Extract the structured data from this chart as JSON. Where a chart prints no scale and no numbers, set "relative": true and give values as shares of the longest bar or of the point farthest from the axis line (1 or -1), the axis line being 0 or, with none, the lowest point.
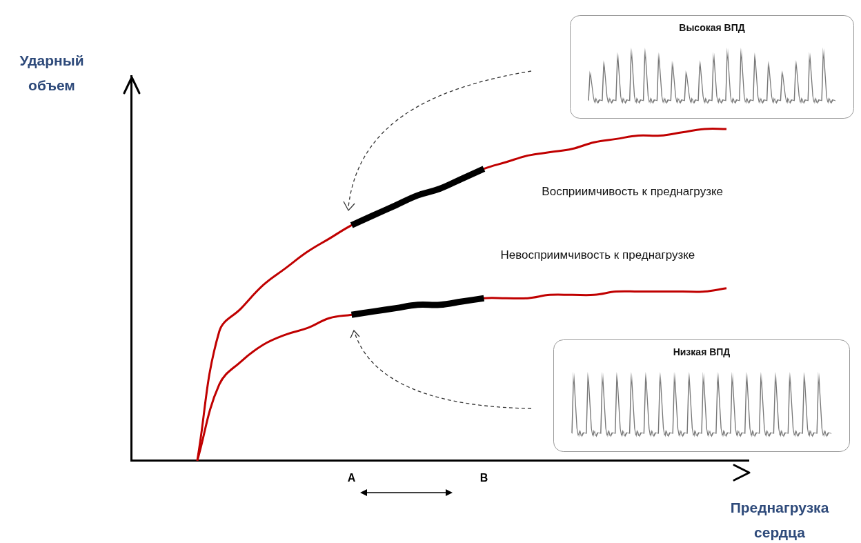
{
  "chart_data": {
    "type": "line",
    "relative": true,
    "xlabel": "Преднагрузка сердца",
    "ylabel": "Ударный объем",
    "categories": [
      null,
      null,
      null,
      null,
      null,
      null,
      null,
      null,
      null,
      null,
      "A",
      null,
      null,
      null,
      null,
      null,
      "B",
      null,
      null,
      null,
      null,
      null,
      null,
      null,
      null,
      null,
      null,
      null,
      null
    ],
    "series": [
      {
        "name": "Восприимчивость к преднагрузке",
        "color": "#c00000",
        "values": [
          null,
          null,
          null,
          0,
          0.39,
          0.46,
          0.53,
          0.58,
          0.63,
          0.67,
          0.71,
          0.74,
          0.77,
          0.8,
          0.82,
          0.85,
          0.88,
          0.9,
          0.92,
          0.93,
          0.94,
          0.96,
          0.97,
          0.98,
          0.98,
          0.99,
          1.0,
          1.0,
          null
        ]
      },
      {
        "name": "Невосприимчивость к преднагрузке",
        "color": "#c00000",
        "values": [
          null,
          null,
          null,
          0,
          0.23,
          0.3,
          0.35,
          0.38,
          0.4,
          0.43,
          0.44,
          0.45,
          0.46,
          0.47,
          0.47,
          0.48,
          0.49,
          0.49,
          0.49,
          0.5,
          0.5,
          0.5,
          0.51,
          0.51,
          0.51,
          0.51,
          0.51,
          0.52,
          null
        ]
      },
      {
        "color": "#000000",
        "values": [
          null,
          null,
          null,
          null,
          null,
          null,
          null,
          null,
          null,
          null,
          0.71,
          0.74,
          0.77,
          0.8,
          0.82,
          0.85,
          0.88,
          null,
          null,
          null,
          null,
          null,
          null,
          null,
          null,
          null,
          null,
          null,
          null
        ]
      },
      {
        "color": "#000000",
        "values": [
          null,
          null,
          null,
          null,
          null,
          null,
          null,
          null,
          null,
          null,
          0.44,
          0.45,
          0.46,
          0.47,
          0.47,
          0.48,
          0.49,
          null,
          null,
          null,
          null,
          null,
          null,
          null,
          null,
          null,
          null,
          null,
          null
        ]
      }
    ],
    "annotations": [
      "Высокая ВПД",
      "Низкая ВПД"
    ]
  }
}
